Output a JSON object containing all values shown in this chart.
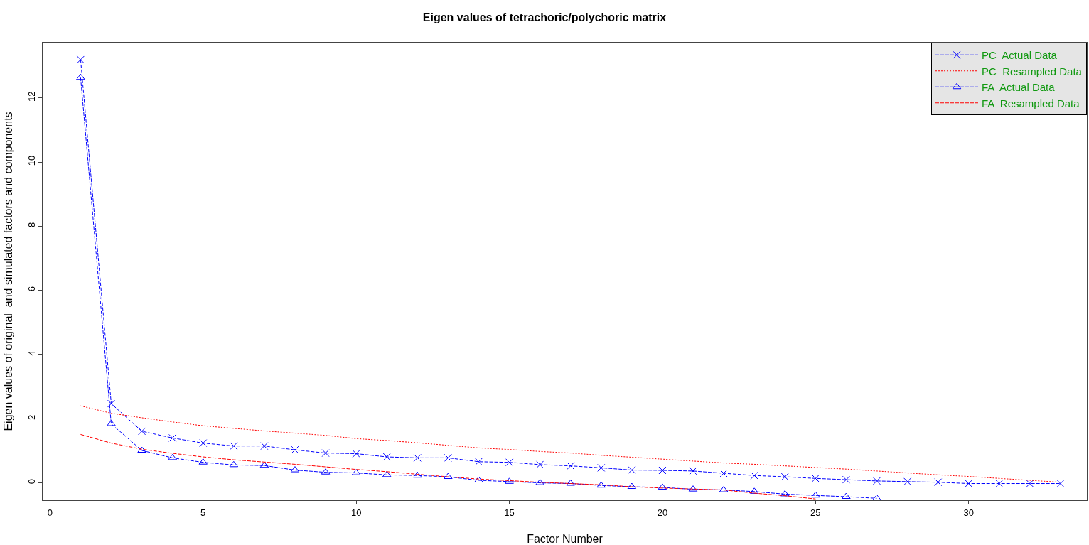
{
  "chart_data": {
    "type": "line",
    "title": "Eigen values of tetrachoric/polychoric matrix",
    "xlabel": "Factor Number",
    "ylabel": "Eigen values of original  and simulated factors and components",
    "x": [
      1,
      2,
      3,
      4,
      5,
      6,
      7,
      8,
      9,
      10,
      11,
      12,
      13,
      14,
      15,
      16,
      17,
      18,
      19,
      20,
      21,
      22,
      23,
      24,
      25,
      26,
      27,
      28,
      29,
      30,
      31,
      32,
      33
    ],
    "series": [
      {
        "name": "PC  Actual Data",
        "color": "#0000ff",
        "marker": "cross",
        "line_style": "dashed",
        "values": [
          13.19,
          2.47,
          1.61,
          1.4,
          1.24,
          1.15,
          1.15,
          1.03,
          0.93,
          0.91,
          0.81,
          0.78,
          0.78,
          0.66,
          0.64,
          0.57,
          0.53,
          0.47,
          0.4,
          0.39,
          0.37,
          0.3,
          0.23,
          0.19,
          0.14,
          0.1,
          0.06,
          0.04,
          0.02,
          -0.02,
          -0.02,
          -0.02,
          -0.02
        ]
      },
      {
        "name": "PC  Resampled Data",
        "color": "#ff0000",
        "marker": "none",
        "line_style": "dotted",
        "values": [
          2.4,
          2.17,
          2.03,
          1.9,
          1.78,
          1.7,
          1.62,
          1.55,
          1.48,
          1.38,
          1.32,
          1.25,
          1.17,
          1.09,
          1.04,
          0.98,
          0.93,
          0.86,
          0.8,
          0.74,
          0.68,
          0.62,
          0.58,
          0.53,
          0.48,
          0.43,
          0.37,
          0.31,
          0.25,
          0.2,
          0.14,
          0.08,
          0.02
        ]
      },
      {
        "name": "FA  Actual Data",
        "color": "#0000ff",
        "marker": "triangle",
        "line_style": "dashed",
        "values": [
          12.63,
          1.84,
          1.01,
          0.78,
          0.64,
          0.56,
          0.54,
          0.4,
          0.33,
          0.31,
          0.25,
          0.23,
          0.19,
          0.08,
          0.04,
          0.0,
          -0.02,
          -0.08,
          -0.12,
          -0.14,
          -0.2,
          -0.22,
          -0.27,
          -0.35,
          -0.39,
          -0.43,
          -0.48,
          null,
          null,
          null,
          null,
          null,
          null
        ]
      },
      {
        "name": "FA  Resampled Data",
        "color": "#ff0000",
        "marker": "none",
        "line_style": "dashed",
        "values": [
          1.51,
          1.24,
          1.05,
          0.92,
          0.81,
          0.72,
          0.65,
          0.58,
          0.5,
          0.42,
          0.35,
          0.27,
          0.19,
          0.12,
          0.07,
          0.02,
          -0.02,
          -0.06,
          -0.12,
          -0.16,
          -0.19,
          -0.22,
          -0.32,
          -0.4,
          -0.5,
          null,
          null,
          null,
          null,
          null,
          null,
          null,
          null
        ]
      }
    ],
    "xlim": [
      -0.24,
      33.86
    ],
    "xticks": [
      0,
      5,
      10,
      15,
      20,
      25,
      30
    ],
    "ylim": [
      -0.54,
      13.72
    ],
    "yticks": [
      0,
      2,
      4,
      6,
      8,
      10,
      12
    ],
    "legend": "top right"
  }
}
